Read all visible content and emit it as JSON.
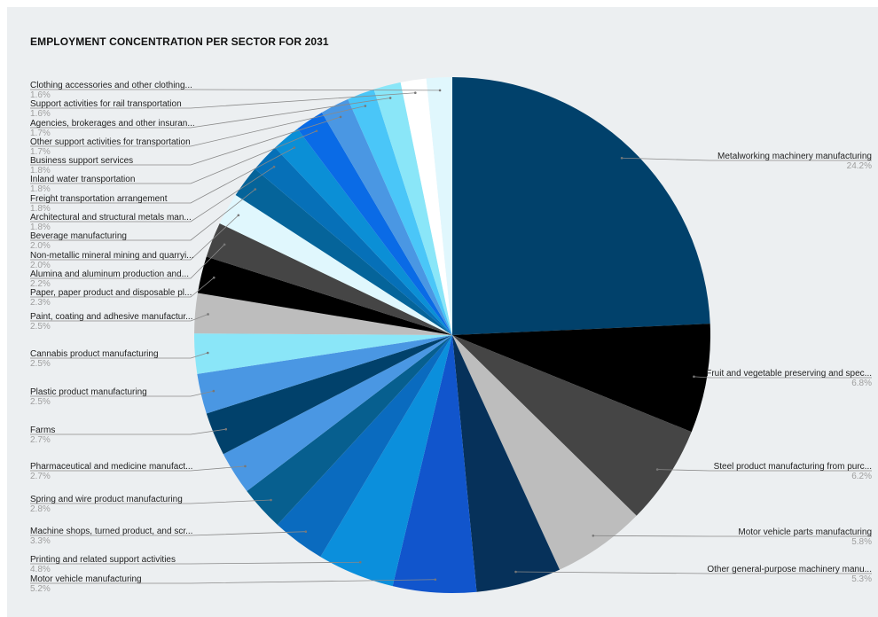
{
  "chart_data": {
    "type": "pie",
    "title": "EMPLOYMENT CONCENTRATION PER SECTOR FOR 2031",
    "start_angle": "12 o'clock, clockwise",
    "slices": [
      {
        "label": "Metalworking machinery manufacturing",
        "pct_label": "24.2%",
        "value": 24.2,
        "color": "#01416b"
      },
      {
        "label": "Fruit and vegetable preserving and spec...",
        "pct_label": "6.8%",
        "value": 6.8,
        "color": "#000000"
      },
      {
        "label": "Steel product manufacturing from purc...",
        "pct_label": "6.2%",
        "value": 6.2,
        "color": "#454545"
      },
      {
        "label": "Motor vehicle parts manufacturing",
        "pct_label": "5.8%",
        "value": 5.8,
        "color": "#bdbdbd"
      },
      {
        "label": "Other general-purpose machinery manu...",
        "pct_label": "5.3%",
        "value": 5.3,
        "color": "#06315a"
      },
      {
        "label": "Motor vehicle manufacturing",
        "pct_label": "5.2%",
        "value": 5.2,
        "color": "#1155cc"
      },
      {
        "label": "Printing and related support activities",
        "pct_label": "4.8%",
        "value": 4.8,
        "color": "#0b8fdc"
      },
      {
        "label": "Machine shops, turned product, and scr...",
        "pct_label": "3.3%",
        "value": 3.3,
        "color": "#0a6bbf"
      },
      {
        "label": "Spring and wire product manufacturing",
        "pct_label": "2.8%",
        "value": 2.8,
        "color": "#075f8f"
      },
      {
        "label": "Pharmaceutical and medicine manufact...",
        "pct_label": "2.7%",
        "value": 2.7,
        "color": "#4a97e3"
      },
      {
        "label": "Farms",
        "pct_label": "2.7%",
        "value": 2.7,
        "color": "#01416b"
      },
      {
        "label": "Plastic product manufacturing",
        "pct_label": "2.5%",
        "value": 2.5,
        "color": "#4a97e3"
      },
      {
        "label": "Cannabis product manufacturing",
        "pct_label": "2.5%",
        "value": 2.5,
        "color": "#8ae6f8"
      },
      {
        "label": "Paint, coating and adhesive manufactur...",
        "pct_label": "2.5%",
        "value": 2.5,
        "color": "#bdbdbd"
      },
      {
        "label": "Paper, paper product and disposable pl...",
        "pct_label": "2.3%",
        "value": 2.3,
        "color": "#000000"
      },
      {
        "label": "Alumina and aluminum production and...",
        "pct_label": "2.2%",
        "value": 2.2,
        "color": "#454545"
      },
      {
        "label": "Non-metallic mineral mining and quarryi...",
        "pct_label": "2.0%",
        "value": 2.0,
        "color": "#e0f7fd"
      },
      {
        "label": "Beverage manufacturing",
        "pct_label": "2.0%",
        "value": 2.0,
        "color": "#05649a"
      },
      {
        "label": "Architectural and structural metals man...",
        "pct_label": "1.8%",
        "value": 1.8,
        "color": "#0670b8"
      },
      {
        "label": "Freight transportation arrangement",
        "pct_label": "1.8%",
        "value": 1.8,
        "color": "#0b8fd6"
      },
      {
        "label": "Inland water transportation",
        "pct_label": "1.8%",
        "value": 1.8,
        "color": "#0a6be6"
      },
      {
        "label": "Business support services",
        "pct_label": "1.8%",
        "value": 1.8,
        "color": "#4a97e3"
      },
      {
        "label": "Other support activities for transportation",
        "pct_label": "1.7%",
        "value": 1.7,
        "color": "#4ac6f8"
      },
      {
        "label": "Agencies, brokerages and other insuran...",
        "pct_label": "1.7%",
        "value": 1.7,
        "color": "#8ae6f8"
      },
      {
        "label": "Support activities for rail transportation",
        "pct_label": "1.6%",
        "value": 1.6,
        "color": "#ffffff"
      },
      {
        "label": "Clothing accessories and other clothing...",
        "pct_label": "1.6%",
        "value": 1.6,
        "color": "#e0f7fd"
      }
    ]
  }
}
